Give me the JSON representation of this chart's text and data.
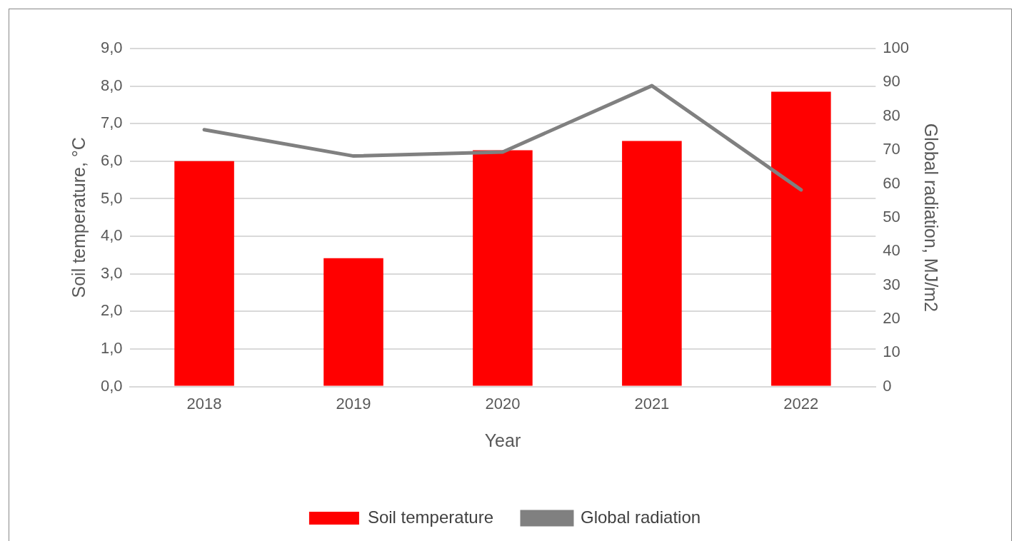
{
  "chart_data": {
    "type": "bar",
    "xlabel": "Year",
    "ylabel": "Soil temperature, °C",
    "y2label": "Global radiation, MJ/m2",
    "categories": [
      "2018",
      "2019",
      "2020",
      "2021",
      "2022"
    ],
    "series": [
      {
        "name": "Soil temperature",
        "color": "#ff0000",
        "values": [
          6.0,
          3.42,
          6.29,
          6.54,
          7.85
        ]
      },
      {
        "name": "Global radiation",
        "type": "line",
        "axis": "y2",
        "color": "#808080",
        "values": [
          76,
          68.2,
          69.4,
          89,
          58.2
        ]
      }
    ],
    "ylim": [
      0,
      9
    ],
    "yticks": [
      {
        "value": 0,
        "label": "0,0"
      },
      {
        "value": 1,
        "label": "1,0"
      },
      {
        "value": 2,
        "label": "2,0"
      },
      {
        "value": 3,
        "label": "3,0"
      },
      {
        "value": 4,
        "label": "4,0"
      },
      {
        "value": 5,
        "label": "5,0"
      },
      {
        "value": 6,
        "label": "6,0"
      },
      {
        "value": 7,
        "label": "7,0"
      },
      {
        "value": 8,
        "label": "8,0"
      },
      {
        "value": 9,
        "label": "9,0"
      }
    ],
    "y2lim": [
      0,
      100
    ],
    "y2ticks": [
      0,
      10,
      20,
      30,
      40,
      50,
      60,
      70,
      80,
      90,
      100
    ],
    "grid": "y",
    "legend": "bottom",
    "marker": "none",
    "line_style": "solid"
  }
}
